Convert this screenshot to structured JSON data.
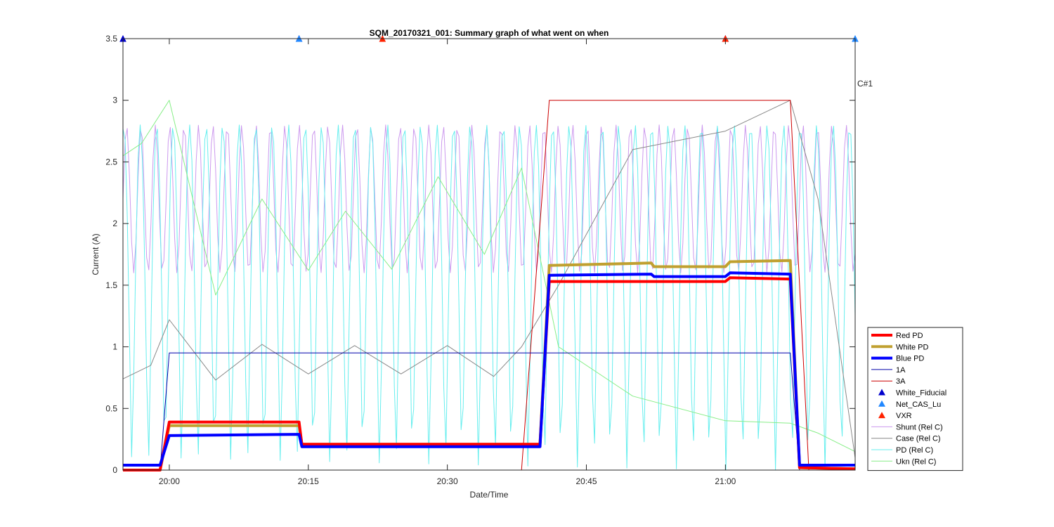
{
  "chart_data": {
    "type": "line",
    "title": "SQM_20170321_001: Summary graph of what went on when",
    "xlabel": "Date/Time",
    "ylabel": "Current (A)",
    "corner_label": "C#1",
    "xlim": [
      "19:55",
      "21:14"
    ],
    "ylim": [
      0,
      3.5
    ],
    "x_ticks": [
      "20:00",
      "20:15",
      "20:30",
      "20:45",
      "21:00"
    ],
    "y_ticks": [
      "0",
      "0.5",
      "1",
      "1.5",
      "2",
      "2.5",
      "3",
      "3.5"
    ],
    "grid": false,
    "legend_position": "bottom-right-outside",
    "series": [
      {
        "name": "Red PD",
        "color": "#ff0000",
        "width": 4,
        "x": [
          "19:55",
          "19:59",
          "20:00",
          "20:14",
          "20:14.3",
          "20:40",
          "20:41",
          "21:00",
          "21:00.5",
          "21:07",
          "21:08",
          "21:14"
        ],
        "values": [
          0.0,
          0.0,
          0.39,
          0.39,
          0.21,
          0.21,
          1.53,
          1.53,
          1.56,
          1.55,
          0.02,
          0.01
        ]
      },
      {
        "name": "White PD",
        "color": "#c0a030",
        "width": 4,
        "x": [
          "19:55",
          "19:59",
          "20:00",
          "20:14",
          "20:14.3",
          "20:40",
          "20:41",
          "20:52",
          "20:52.3",
          "21:00",
          "21:00.5",
          "21:07",
          "21:08",
          "21:14"
        ],
        "values": [
          0.0,
          0.0,
          0.36,
          0.36,
          0.21,
          0.21,
          1.66,
          1.68,
          1.65,
          1.65,
          1.69,
          1.7,
          0.02,
          0.01
        ]
      },
      {
        "name": "Blue PD",
        "color": "#0000ff",
        "width": 4,
        "x": [
          "19:55",
          "19:59",
          "20:00",
          "20:14",
          "20:14.3",
          "20:40",
          "20:41",
          "20:52",
          "20:52.3",
          "21:00",
          "21:00.5",
          "21:07",
          "21:08",
          "21:14"
        ],
        "values": [
          0.04,
          0.04,
          0.28,
          0.29,
          0.19,
          0.19,
          1.58,
          1.59,
          1.57,
          1.57,
          1.6,
          1.59,
          0.04,
          0.04
        ]
      },
      {
        "name": "1A",
        "color": "#0000aa",
        "width": 1,
        "x": [
          "19:55",
          "19:59",
          "20:00",
          "21:07",
          "21:08",
          "21:14"
        ],
        "values": [
          0.0,
          0.0,
          0.95,
          0.95,
          0.0,
          0.0
        ]
      },
      {
        "name": "3A",
        "color": "#cc0000",
        "width": 1,
        "x": [
          "19:55",
          "20:38",
          "20:41",
          "21:07",
          "21:09",
          "21:14"
        ],
        "values": [
          0.0,
          0.0,
          3.0,
          3.0,
          0.0,
          0.0
        ]
      },
      {
        "name": "Shunt (Rel C)",
        "color": "#cc99ee",
        "width": 1,
        "x": [
          "19:55",
          "21:14"
        ],
        "values": [
          1.6,
          2.8
        ],
        "note_shape": "oscillation"
      },
      {
        "name": "Case (Rel C)",
        "color": "#888888",
        "width": 1,
        "x": [
          "19:55",
          "19:58",
          "20:00",
          "20:05",
          "20:10",
          "20:15",
          "20:20",
          "20:25",
          "20:30",
          "20:35",
          "20:38",
          "20:42",
          "20:50",
          "21:00",
          "21:07",
          "21:10",
          "21:14"
        ],
        "values": [
          0.74,
          0.85,
          1.22,
          0.73,
          1.02,
          0.78,
          1.01,
          0.78,
          1.01,
          0.76,
          1.0,
          1.5,
          2.6,
          2.75,
          3.0,
          2.2,
          0.1
        ]
      },
      {
        "name": "PD (Rel C)",
        "color": "#66eeee",
        "width": 1,
        "x": [
          "19:55",
          "21:14"
        ],
        "values": [
          0.0,
          2.8
        ],
        "note_shape": "oscillation"
      },
      {
        "name": "Ukn (Rel C)",
        "color": "#88ee88",
        "width": 1,
        "x": [
          "19:55",
          "19:57",
          "20:00",
          "20:05",
          "20:10",
          "20:15",
          "20:19",
          "20:24",
          "20:29",
          "20:34",
          "20:38",
          "20:42",
          "20:50",
          "21:00",
          "21:07",
          "21:10",
          "21:14"
        ],
        "values": [
          2.55,
          2.65,
          3.0,
          1.42,
          2.2,
          1.62,
          2.1,
          1.63,
          2.38,
          1.75,
          2.45,
          1.0,
          0.6,
          0.4,
          0.38,
          0.3,
          0.15
        ]
      }
    ],
    "markers": [
      {
        "name": "White_Fiducial",
        "color": "#0000cc",
        "shape": "triangle-up",
        "x": [
          "19:55",
          "20:14",
          "21:00"
        ]
      },
      {
        "name": "Net_CAS_Lu",
        "color": "#2288ff",
        "shape": "triangle-up",
        "x": [
          "20:14",
          "21:00",
          "21:14"
        ]
      },
      {
        "name": "VXR",
        "color": "#ff2200",
        "shape": "triangle-up",
        "x": [
          "20:23",
          "21:00"
        ]
      }
    ]
  }
}
